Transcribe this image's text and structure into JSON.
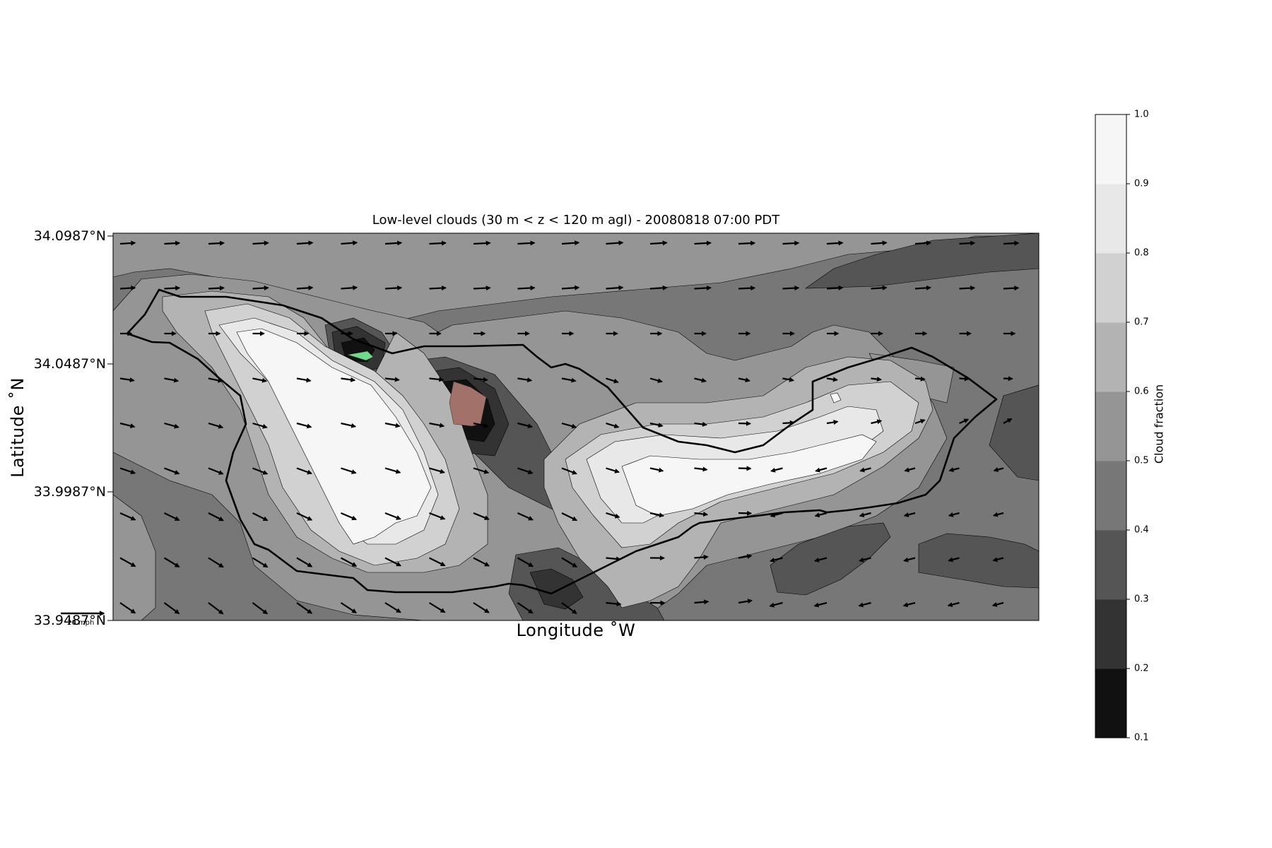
{
  "chart_data": {
    "type": "contour",
    "title": "Low-level clouds (30 m < z < 120 m agl) - 20080818 07:00 PDT",
    "xlabel": "Longitude $^\\circ$W",
    "xlabel_display": "Longitude ˚W",
    "ylabel": "Latitude ˚N",
    "y_ticks": [
      "34.0987°N",
      "34.0487°N",
      "33.9987°N",
      "33.9487°N"
    ],
    "y_tick_values": [
      34.0987,
      34.0487,
      33.9987,
      33.9487
    ],
    "ylim": [
      33.9487,
      34.0987
    ],
    "colorbar": {
      "label": "Cloud fraction",
      "ticks": [
        "1.0",
        "0.9",
        "0.8",
        "0.7",
        "0.6",
        "0.5",
        "0.4",
        "0.3",
        "0.2",
        "0.1"
      ],
      "levels": [
        0.1,
        0.2,
        0.3,
        0.4,
        0.5,
        0.6,
        0.7,
        0.8,
        0.9,
        1.0
      ],
      "colors": [
        "#111111",
        "#333333",
        "#555555",
        "#777777",
        "#959595",
        "#b3b3b3",
        "#d1d1d1",
        "#e8e8e8",
        "#f6f6f6"
      ]
    },
    "quiver_key": {
      "label": "20 mph"
    },
    "fill_shapes": [
      {
        "label": "green-patch",
        "color": "#6fdc8c"
      },
      {
        "label": "tan-patch",
        "color": "#a2716a"
      }
    ],
    "grid": false
  }
}
